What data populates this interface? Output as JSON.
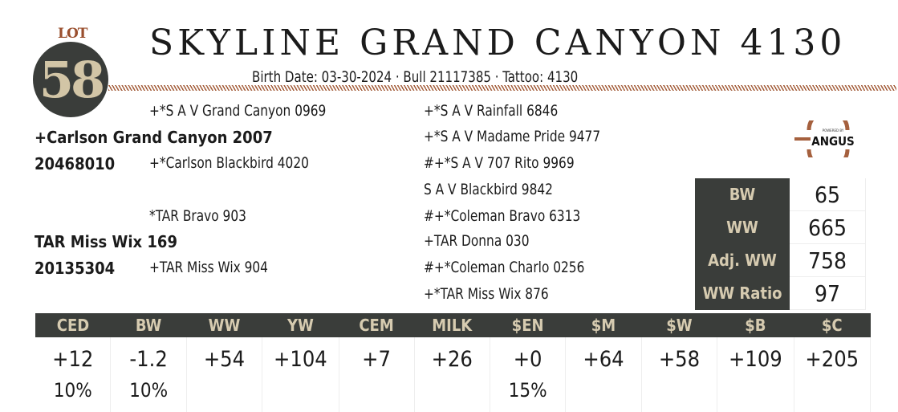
{
  "lot": {
    "label": "LOT",
    "number": "58"
  },
  "title": "SKYLINE GRAND CANYON 4130",
  "subtitle": "Birth Date: 03-30-2024   ·   Bull 21117385   ·   Tattoo: 4130",
  "pedigree": {
    "sire": {
      "name": "+Carlson Grand Canyon 2007",
      "reg": "20468010",
      "sire": "+*S A V Grand Canyon 0969",
      "dam": "+*Carlson Blackbird 4020"
    },
    "dam": {
      "name": "TAR Miss Wix 169",
      "reg": "20135304",
      "sire": "*TAR Bravo 903",
      "dam": "+TAR Miss Wix 904"
    },
    "outer": [
      "+*S A V Rainfall 6846",
      "+*S A V Madame Pride 9477",
      "#+*S A V 707 Rito 9969",
      "S A V Blackbird 9842",
      "#+*Coleman Bravo 6313",
      "+TAR Donna 030",
      "#+*Coleman Charlo 0256",
      "+*TAR Miss Wix 876"
    ]
  },
  "logo": {
    "top": "POWERED BY",
    "text": "ANGUS"
  },
  "performance": [
    {
      "k": "BW",
      "v": "65"
    },
    {
      "k": "WW",
      "v": "665"
    },
    {
      "k": "Adj. WW",
      "v": "758"
    },
    {
      "k": "WW Ratio",
      "v": "97"
    }
  ],
  "epd": {
    "headers": [
      "CED",
      "BW",
      "WW",
      "YW",
      "CEM",
      "MILK",
      "$EN",
      "$M",
      "$W",
      "$B",
      "$C"
    ],
    "values": [
      "+12",
      "-1.2",
      "+54",
      "+104",
      "+7",
      "+26",
      "+0",
      "+64",
      "+58",
      "+109",
      "+205"
    ],
    "percentiles": [
      "10%",
      "10%",
      "",
      "",
      "",
      "",
      "15%",
      "",
      "",
      "",
      ""
    ]
  },
  "colors": {
    "dark": "#3a3d3a",
    "tan": "#d6cbb0",
    "rust": "#a5603e"
  }
}
